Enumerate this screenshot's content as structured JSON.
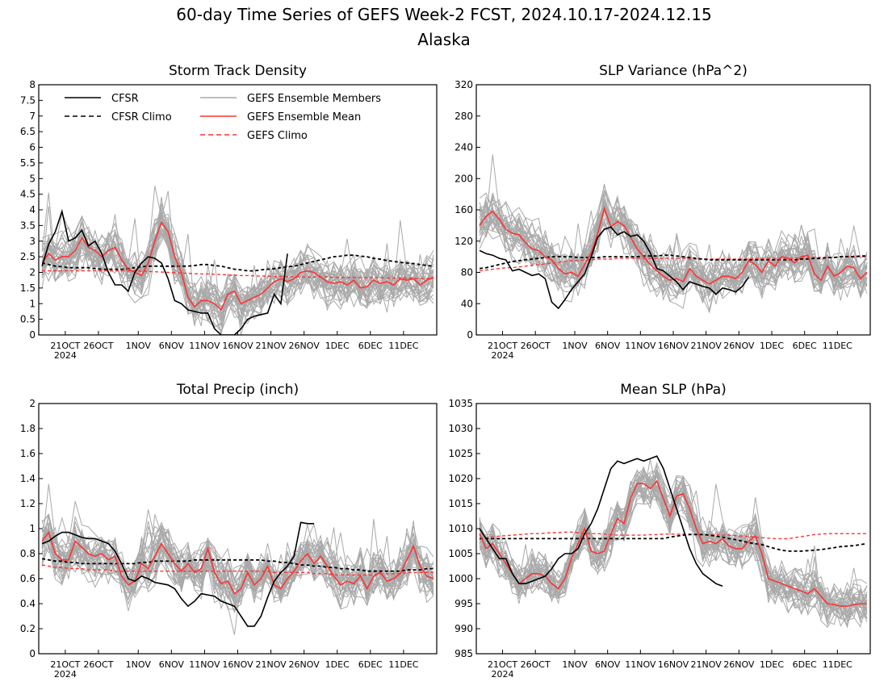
{
  "figure": {
    "title": "60-day Time Series of GEFS Week-2 FCST, 2024.10.17-2024.12.15",
    "subtitle": "Alaska"
  },
  "legend": {
    "cfsr": "CFSR",
    "cfsr_climo": "CFSR Climo",
    "ens_members": "GEFS Ensemble Members",
    "ens_mean": "GEFS Ensemble Mean",
    "gefs_climo": "GEFS Climo"
  },
  "colors": {
    "cfsr": "#000000",
    "cfsr_climo": "#000000",
    "ens_members": "#a9a9a9",
    "ens_mean": "#ff3333",
    "gefs_climo": "#ff3333"
  },
  "time_axis": {
    "start": "2024-10-17",
    "n_days": 60,
    "ticks": [
      "21OCT",
      "26OCT",
      "1NOV",
      "6NOV",
      "11NOV",
      "16NOV",
      "21NOV",
      "26NOV",
      "1DEC",
      "6DEC",
      "11DEC"
    ],
    "year_label": "2024"
  },
  "chart_data": [
    {
      "type": "line",
      "title": "Storm Track Density",
      "ylim": [
        0,
        8
      ],
      "yticks": [
        "0",
        "0.5",
        "1",
        "1.5",
        "2",
        "2.5",
        "3",
        "3.5",
        "4",
        "4.5",
        "5",
        "5.5",
        "6",
        "6.5",
        "7",
        "7.5",
        "8"
      ],
      "legend": true,
      "series": [
        {
          "name": "CFSR",
          "values": [
            2.2,
            2.9,
            3.3,
            3.95,
            3.0,
            3.1,
            3.35,
            2.85,
            3.0,
            2.6,
            2.0,
            1.6,
            1.6,
            1.4,
            2.0,
            2.3,
            2.5,
            2.45,
            2.3,
            1.8,
            1.1,
            1.0,
            0.8,
            0.75,
            0.7,
            0.7,
            0.2,
            0.0,
            0.0,
            0.0,
            0.2,
            0.5,
            0.6,
            0.65,
            0.7,
            1.3,
            1.0,
            2.6
          ]
        },
        {
          "name": "CFSR Climo",
          "values": [
            2.3,
            2.25,
            2.2,
            2.18,
            2.15,
            2.15,
            2.15,
            2.15,
            2.12,
            2.1,
            2.1,
            2.1,
            2.1,
            2.12,
            2.15,
            2.18,
            2.2,
            2.2,
            2.2,
            2.2,
            2.2,
            2.2,
            2.2,
            2.22,
            2.25,
            2.25,
            2.22,
            2.2,
            2.15,
            2.1,
            2.08,
            2.05,
            2.05,
            2.08,
            2.1,
            2.12,
            2.15,
            2.18,
            2.2,
            2.25,
            2.3,
            2.35,
            2.4,
            2.45,
            2.5,
            2.52,
            2.55,
            2.55,
            2.52,
            2.5,
            2.45,
            2.42,
            2.38,
            2.35,
            2.32,
            2.3,
            2.28,
            2.25,
            2.22,
            2.2
          ]
        },
        {
          "name": "GEFS Ensemble Mean",
          "values": [
            2.3,
            2.6,
            2.4,
            2.5,
            2.5,
            2.7,
            3.1,
            2.8,
            2.7,
            2.5,
            2.7,
            2.8,
            2.4,
            2.1,
            2.0,
            1.9,
            2.3,
            3.0,
            3.6,
            3.3,
            2.5,
            2.0,
            1.2,
            0.9,
            1.1,
            1.1,
            1.0,
            0.8,
            1.3,
            1.4,
            1.0,
            1.1,
            1.2,
            1.3,
            1.5,
            1.7,
            1.8,
            1.7,
            1.8,
            2.0,
            2.05,
            2.0,
            1.85,
            1.7,
            1.65,
            1.7,
            1.6,
            1.75,
            1.5,
            1.55,
            1.75,
            1.65,
            1.7,
            1.6,
            1.8,
            1.75,
            1.8,
            1.6,
            1.75,
            1.85
          ]
        },
        {
          "name": "GEFS Climo",
          "values": [
            2.05,
            2.05,
            2.05,
            2.05,
            2.05,
            2.05,
            2.05,
            2.05,
            2.05,
            2.05,
            2.05,
            2.05,
            2.05,
            2.05,
            2.05,
            2.04,
            2.03,
            2.02,
            2.01,
            2.0,
            1.99,
            1.98,
            1.97,
            1.96,
            1.95,
            1.95,
            1.94,
            1.93,
            1.92,
            1.91,
            1.9,
            1.9,
            1.89,
            1.88,
            1.88,
            1.87,
            1.87,
            1.86,
            1.86,
            1.85,
            1.85,
            1.85,
            1.85,
            1.85,
            1.84,
            1.84,
            1.84,
            1.84,
            1.83,
            1.83,
            1.83,
            1.83,
            1.82,
            1.82,
            1.82,
            1.82,
            1.81,
            1.81,
            1.81,
            1.8
          ]
        }
      ]
    },
    {
      "type": "line",
      "title": "SLP Variance (hPa^2)",
      "ylim": [
        0,
        320
      ],
      "yticks": [
        "0",
        "40",
        "80",
        "120",
        "160",
        "200",
        "240",
        "280",
        "320"
      ],
      "legend": false,
      "series": [
        {
          "name": "CFSR",
          "values": [
            108,
            104,
            102,
            98,
            96,
            82,
            84,
            80,
            76,
            78,
            72,
            42,
            34,
            45,
            58,
            68,
            78,
            100,
            125,
            135,
            138,
            128,
            132,
            126,
            128,
            120,
            105,
            85,
            82,
            75,
            68,
            58,
            68,
            65,
            62,
            60,
            52,
            60,
            58,
            55,
            62,
            74
          ]
        },
        {
          "name": "CFSR Climo",
          "values": [
            85,
            86,
            88,
            90,
            92,
            94,
            95,
            96,
            97,
            98,
            99,
            100,
            100,
            100,
            100,
            99,
            99,
            99,
            99,
            100,
            100,
            100,
            100,
            100,
            100,
            101,
            101,
            101,
            102,
            102,
            101,
            100,
            99,
            98,
            97,
            96,
            96,
            96,
            96,
            96,
            96,
            96,
            96,
            96,
            96,
            96,
            96,
            96,
            96,
            97,
            97,
            98,
            98,
            99,
            99,
            100,
            100,
            100,
            101,
            101
          ]
        },
        {
          "name": "GEFS Ensemble Mean",
          "values": [
            140,
            152,
            158,
            148,
            135,
            130,
            128,
            118,
            110,
            108,
            100,
            96,
            85,
            78,
            80,
            75,
            90,
            105,
            130,
            162,
            138,
            145,
            140,
            125,
            110,
            100,
            90,
            82,
            75,
            70,
            72,
            68,
            85,
            75,
            70,
            65,
            70,
            75,
            75,
            72,
            80,
            95,
            90,
            80,
            95,
            88,
            100,
            98,
            92,
            100,
            102,
            78,
            70,
            88,
            75,
            80,
            88,
            86,
            72,
            80
          ]
        },
        {
          "name": "GEFS Climo",
          "values": [
            82,
            83,
            84,
            85,
            86,
            86,
            87,
            88,
            89,
            90,
            91,
            92,
            93,
            94,
            95,
            95,
            96,
            96,
            97,
            97,
            97,
            98,
            98,
            98,
            98,
            98,
            98,
            98,
            98,
            98,
            98,
            98,
            97,
            97,
            97,
            97,
            97,
            97,
            97,
            97,
            97,
            97,
            98,
            98,
            98,
            98,
            98,
            98,
            98,
            99,
            99,
            99,
            99,
            99,
            99,
            100,
            100,
            100,
            100,
            100
          ]
        }
      ]
    },
    {
      "type": "line",
      "title": "Total Precip (inch)",
      "ylim": [
        0,
        2
      ],
      "yticks": [
        "0",
        "0.2",
        "0.4",
        "0.6",
        "0.8",
        "1",
        "1.2",
        "1.4",
        "1.6",
        "1.8",
        "2"
      ],
      "legend": false,
      "series": [
        {
          "name": "CFSR",
          "values": [
            0.88,
            0.9,
            0.94,
            0.97,
            0.97,
            0.95,
            0.93,
            0.92,
            0.92,
            0.9,
            0.88,
            0.82,
            0.72,
            0.6,
            0.58,
            0.62,
            0.6,
            0.57,
            0.56,
            0.55,
            0.52,
            0.44,
            0.38,
            0.42,
            0.48,
            0.47,
            0.46,
            0.42,
            0.4,
            0.38,
            0.3,
            0.22,
            0.22,
            0.3,
            0.45,
            0.58,
            0.65,
            0.7,
            0.78,
            1.05,
            1.04,
            1.04
          ]
        },
        {
          "name": "CFSR Climo",
          "values": [
            0.76,
            0.75,
            0.74,
            0.74,
            0.73,
            0.73,
            0.72,
            0.72,
            0.72,
            0.72,
            0.72,
            0.72,
            0.72,
            0.72,
            0.72,
            0.73,
            0.73,
            0.74,
            0.74,
            0.74,
            0.74,
            0.74,
            0.74,
            0.75,
            0.75,
            0.75,
            0.75,
            0.75,
            0.75,
            0.75,
            0.75,
            0.75,
            0.75,
            0.75,
            0.74,
            0.74,
            0.73,
            0.73,
            0.72,
            0.71,
            0.71,
            0.7,
            0.7,
            0.69,
            0.69,
            0.68,
            0.68,
            0.67,
            0.67,
            0.66,
            0.66,
            0.66,
            0.66,
            0.66,
            0.66,
            0.67,
            0.67,
            0.67,
            0.68,
            0.68
          ]
        },
        {
          "name": "GEFS Ensemble Mean",
          "values": [
            0.9,
            0.97,
            0.8,
            0.75,
            0.75,
            0.9,
            0.85,
            0.8,
            0.78,
            0.8,
            0.75,
            0.78,
            0.62,
            0.55,
            0.58,
            0.72,
            0.68,
            0.78,
            0.88,
            0.8,
            0.72,
            0.66,
            0.72,
            0.65,
            0.68,
            0.84,
            0.65,
            0.56,
            0.58,
            0.48,
            0.52,
            0.65,
            0.55,
            0.6,
            0.7,
            0.55,
            0.52,
            0.6,
            0.66,
            0.74,
            0.8,
            0.72,
            0.78,
            0.7,
            0.62,
            0.55,
            0.58,
            0.56,
            0.62,
            0.52,
            0.62,
            0.65,
            0.58,
            0.6,
            0.64,
            0.75,
            0.86,
            0.7,
            0.62,
            0.6
          ]
        },
        {
          "name": "GEFS Climo",
          "values": [
            0.71,
            0.7,
            0.69,
            0.69,
            0.68,
            0.68,
            0.68,
            0.67,
            0.67,
            0.67,
            0.67,
            0.66,
            0.66,
            0.66,
            0.66,
            0.66,
            0.66,
            0.66,
            0.66,
            0.66,
            0.66,
            0.66,
            0.66,
            0.66,
            0.66,
            0.66,
            0.66,
            0.66,
            0.66,
            0.66,
            0.66,
            0.66,
            0.66,
            0.66,
            0.66,
            0.65,
            0.65,
            0.65,
            0.65,
            0.65,
            0.65,
            0.64,
            0.64,
            0.64,
            0.63,
            0.63,
            0.63,
            0.63,
            0.63,
            0.63,
            0.63,
            0.64,
            0.64,
            0.64,
            0.64,
            0.65,
            0.65,
            0.65,
            0.65,
            0.65
          ]
        }
      ]
    },
    {
      "type": "line",
      "title": "Mean SLP (hPa)",
      "ylim": [
        985,
        1035
      ],
      "yticks": [
        "985",
        "990",
        "995",
        "1000",
        "1005",
        "1010",
        "1015",
        "1020",
        "1025",
        "1030",
        "1035"
      ],
      "legend": false,
      "series": [
        {
          "name": "CFSR",
          "values": [
            1010,
            1008,
            1006,
            1004,
            1004,
            1001,
            999,
            999,
            999.5,
            1000,
            1000.5,
            1002,
            1004,
            1005,
            1005,
            1006,
            1009,
            1011,
            1014,
            1018,
            1022,
            1023.5,
            1023,
            1023.5,
            1024,
            1023.5,
            1024,
            1024.5,
            1022,
            1018,
            1014,
            1010,
            1006,
            1003,
            1001,
            1000,
            999,
            998.5
          ]
        },
        {
          "name": "CFSR Climo",
          "values": [
            1008,
            1008,
            1008,
            1008,
            1008,
            1008,
            1008,
            1008,
            1008,
            1008,
            1008,
            1008,
            1008,
            1008,
            1008,
            1008,
            1008,
            1008,
            1008,
            1008,
            1008,
            1008,
            1008,
            1008,
            1008,
            1008,
            1008,
            1008,
            1008,
            1008.3,
            1008.5,
            1008.7,
            1008.8,
            1008.8,
            1008.8,
            1008.7,
            1008.5,
            1008.3,
            1008,
            1007.8,
            1007.5,
            1007.2,
            1007,
            1006.8,
            1006.4,
            1006,
            1005.7,
            1005.5,
            1005.5,
            1005.5,
            1005.6,
            1005.7,
            1005.8,
            1006,
            1006.2,
            1006.4,
            1006.5,
            1006.6,
            1006.8,
            1007
          ]
        },
        {
          "name": "GEFS Ensemble Mean",
          "values": [
            1009,
            1006,
            1007,
            1005,
            1003,
            1001,
            999,
            1000,
            1001,
            1001,
            1000.5,
            999,
            998,
            1000,
            1004,
            1007,
            1010,
            1005.5,
            1005,
            1005.5,
            1009,
            1012,
            1011,
            1016,
            1019,
            1019,
            1018,
            1019.5,
            1016,
            1012.5,
            1016.5,
            1017,
            1014,
            1010,
            1007,
            1007.5,
            1007,
            1008,
            1006.5,
            1006,
            1006,
            1007.5,
            1008.5,
            1005,
            1000,
            999.5,
            999,
            998.5,
            998,
            997.5,
            997,
            998,
            996.5,
            995,
            994.8,
            994.5,
            994.5,
            994.8,
            995,
            995
          ]
        },
        {
          "name": "GEFS Climo",
          "values": [
            1008,
            1008.2,
            1008.4,
            1008.5,
            1008.6,
            1008.7,
            1008.8,
            1008.9,
            1009,
            1009,
            1009.1,
            1009.2,
            1009.2,
            1009.3,
            1009.3,
            1009.2,
            1009.1,
            1009,
            1009,
            1008.9,
            1008.8,
            1008.7,
            1008.7,
            1008.7,
            1008.7,
            1008.7,
            1008.8,
            1008.8,
            1008.9,
            1008.9,
            1008.9,
            1008.9,
            1008.9,
            1008.9,
            1008.8,
            1008.8,
            1008.8,
            1008.7,
            1008.7,
            1008.6,
            1008.5,
            1008.4,
            1008.3,
            1008.2,
            1008.1,
            1008,
            1008,
            1008,
            1008.2,
            1008.4,
            1008.6,
            1008.8,
            1008.9,
            1009,
            1009,
            1009,
            1009,
            1009,
            1009,
            1009
          ]
        }
      ]
    }
  ]
}
